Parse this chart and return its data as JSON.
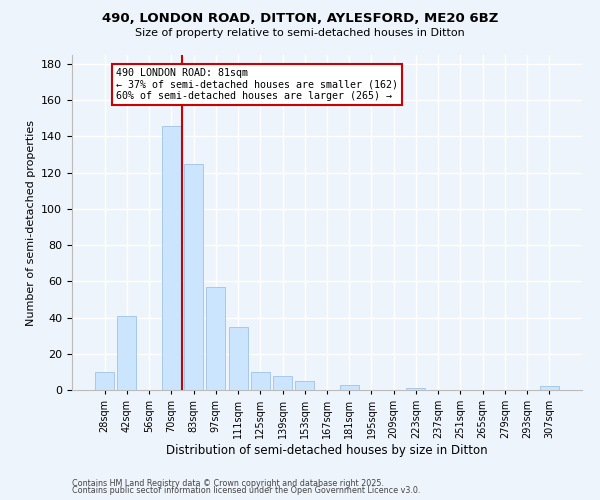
{
  "title": "490, LONDON ROAD, DITTON, AYLESFORD, ME20 6BZ",
  "subtitle": "Size of property relative to semi-detached houses in Ditton",
  "xlabel": "Distribution of semi-detached houses by size in Ditton",
  "ylabel": "Number of semi-detached properties",
  "bar_labels": [
    "28sqm",
    "42sqm",
    "56sqm",
    "70sqm",
    "83sqm",
    "97sqm",
    "111sqm",
    "125sqm",
    "139sqm",
    "153sqm",
    "167sqm",
    "181sqm",
    "195sqm",
    "209sqm",
    "223sqm",
    "237sqm",
    "251sqm",
    "265sqm",
    "279sqm",
    "293sqm",
    "307sqm"
  ],
  "bar_values": [
    10,
    41,
    0,
    146,
    125,
    57,
    35,
    10,
    8,
    5,
    0,
    3,
    0,
    0,
    1,
    0,
    0,
    0,
    0,
    0,
    2
  ],
  "bar_color": "#cce5ff",
  "bar_edge_color": "#a8c8e8",
  "vline_color": "#cc0000",
  "annotation_title": "490 LONDON ROAD: 81sqm",
  "annotation_line1": "← 37% of semi-detached houses are smaller (162)",
  "annotation_line2": "60% of semi-detached houses are larger (265) →",
  "annotation_box_color": "#ffffff",
  "annotation_box_edge": "#cc0000",
  "ylim": [
    0,
    185
  ],
  "yticks": [
    0,
    20,
    40,
    60,
    80,
    100,
    120,
    140,
    160,
    180
  ],
  "footer1": "Contains HM Land Registry data © Crown copyright and database right 2025.",
  "footer2": "Contains public sector information licensed under the Open Government Licence v3.0.",
  "background_color": "#eef4fb",
  "grid_color": "#ffffff"
}
